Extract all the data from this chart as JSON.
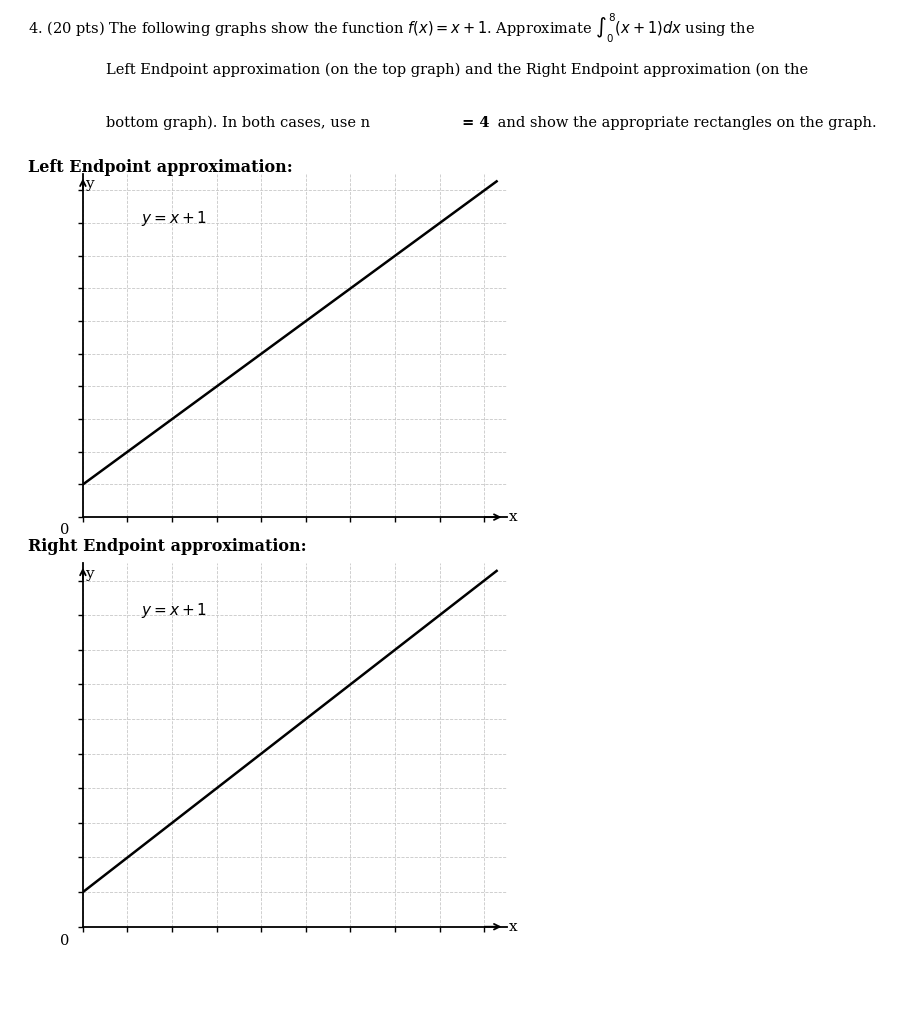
{
  "line1": "4. (20 pts) The following graphs show the function ",
  "line1_math": "f(x) = x + 1",
  "line1_rest": ". Approximate ",
  "line1_int": "\\int_0^{8}(x + 1)dx",
  "line1_end": " using the",
  "line2": "Left Endpoint approximation (on the top graph) and the Right Endpoint approximation (on the",
  "line3a": "bottom graph). In both cases, use n",
  "line3b": " = 4",
  "line3c": " and show the appropriate rectangles on the graph.",
  "left_label": "Left Endpoint approximation:",
  "right_label": "Right Endpoint approximation:",
  "equation_label": "y = x+1",
  "x_min": 0,
  "x_max": 9.5,
  "y_min": 0,
  "y_max": 10.5,
  "grid_minor_color": "#c8c8c8",
  "grid_major_color": "#b0b0b0",
  "line_color": "#000000",
  "bg_color": "#ffffff",
  "n": 4,
  "a": 0,
  "b": 8
}
